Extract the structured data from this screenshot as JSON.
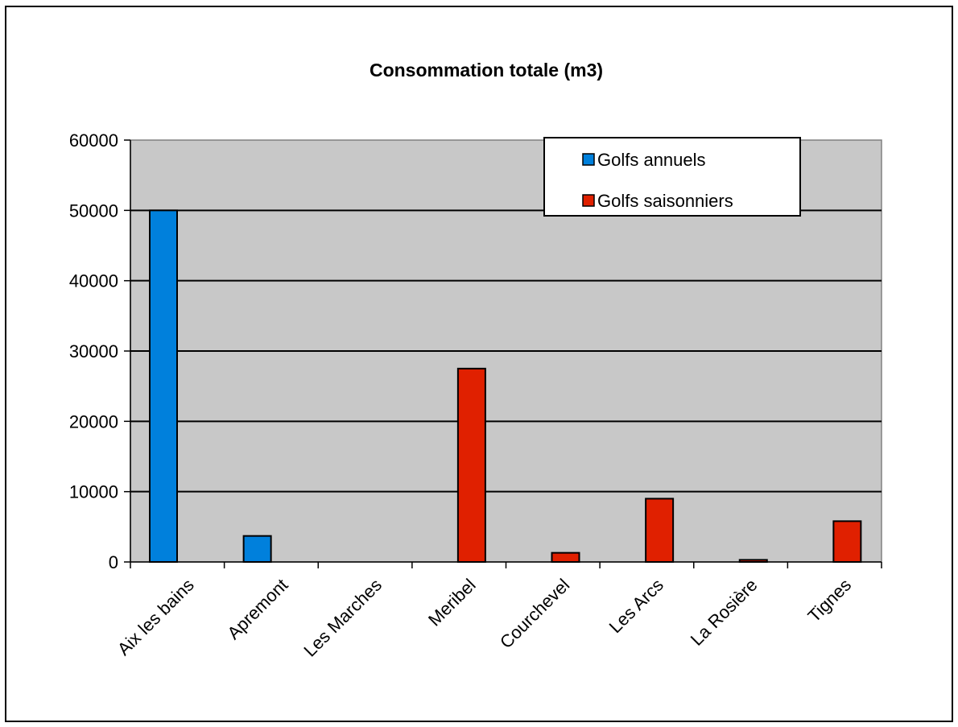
{
  "chart_data": {
    "type": "bar",
    "title": "Consommation totale (m3)",
    "xlabel": "",
    "ylabel": "",
    "ylim": [
      0,
      60000
    ],
    "yticks": [
      "0",
      "10000",
      "20000",
      "30000",
      "40000",
      "50000",
      "60000"
    ],
    "categories": [
      "Aix les bains",
      "Apremont",
      "Les Marches",
      "Meribel",
      "Courchevel",
      "Les Arcs",
      "La Rosière",
      "Tignes"
    ],
    "series": [
      {
        "name": "Golfs annuels",
        "color": "#0080dc",
        "values": [
          50000,
          3700,
          0,
          0,
          0,
          0,
          0,
          0
        ]
      },
      {
        "name": "Golfs saisonniers",
        "color": "#e02000",
        "values": [
          0,
          0,
          0,
          27500,
          1300,
          9000,
          300,
          5800
        ]
      }
    ],
    "grid": true,
    "legend_position": "top-right",
    "plot_background": "#c8c8c8"
  }
}
